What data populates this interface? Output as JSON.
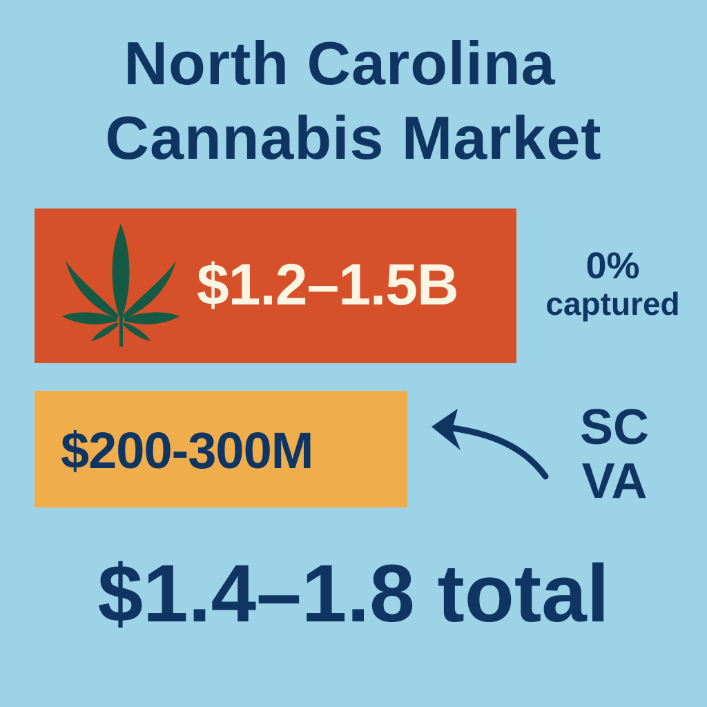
{
  "title": {
    "line1": "North Carolina",
    "line2": "Cannabis Market"
  },
  "illicit_market": {
    "value": "$1.2–1.5B",
    "icon": "cannabis-leaf-icon",
    "color": "#d6502a"
  },
  "captured": {
    "percent": "0%",
    "label": "captured"
  },
  "out_of_state": {
    "value": "$200-300M",
    "color": "#efad4c",
    "states": [
      "SC",
      "VA"
    ],
    "icon": "curved-arrow-left-icon"
  },
  "total": "$1.4–1.8 total",
  "colors": {
    "background": "#9dd3e6",
    "text": "#0f3563",
    "leaf": "#145a44",
    "highlight_text": "#fdf5e4"
  }
}
